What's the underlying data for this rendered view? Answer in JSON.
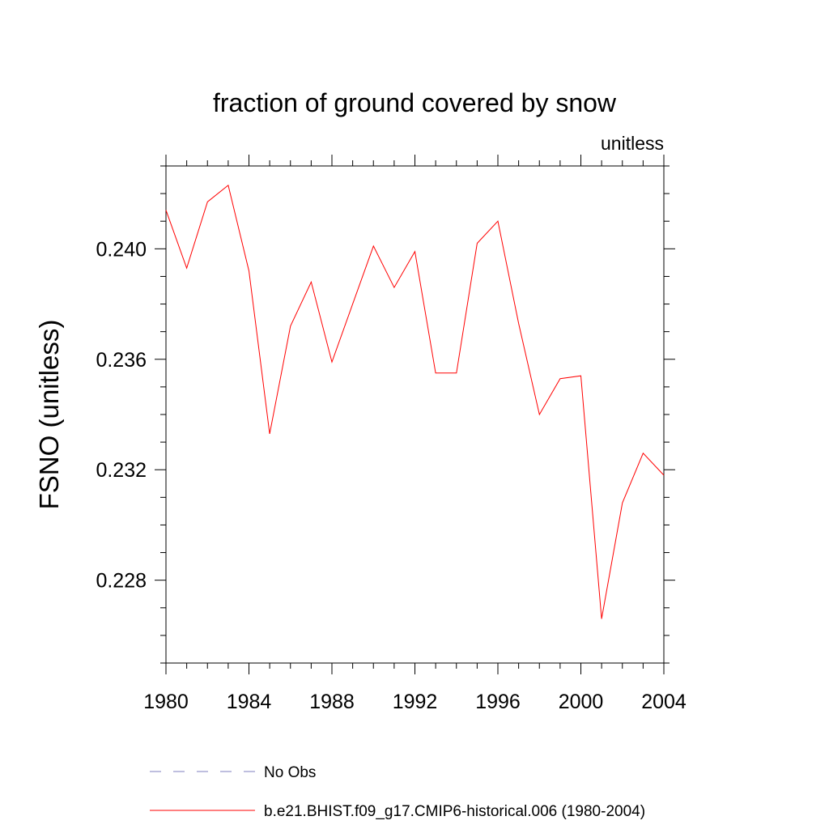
{
  "chart_data": {
    "type": "line",
    "title": "fraction of ground covered by snow",
    "units_label": "unitless",
    "ylabel": "FSNO  (unitless)",
    "xlabel": "",
    "xlim": [
      1980,
      2004
    ],
    "ylim": [
      0.225,
      0.243
    ],
    "x_ticks": [
      1980,
      1984,
      1988,
      1992,
      1996,
      2000,
      2004
    ],
    "x_tick_labels": [
      "1980",
      "1984",
      "1988",
      "1992",
      "1996",
      "2000",
      "2004"
    ],
    "y_ticks": [
      0.228,
      0.232,
      0.236,
      0.24
    ],
    "y_tick_labels": [
      "0.228",
      "0.232",
      "0.236",
      "0.240"
    ],
    "grid": false,
    "legend_position": "bottom",
    "legend": [
      {
        "label": "No Obs",
        "color": "#7f7fbf",
        "style": "dashed"
      },
      {
        "label": "b.e21.BHIST.f09_g17.CMIP6-historical.006 (1980-2004)",
        "color": "#ff0000",
        "style": "solid"
      }
    ],
    "series": [
      {
        "name": "b.e21.BHIST.f09_g17.CMIP6-historical.006 (1980-2004)",
        "color": "#ff0000",
        "x": [
          1980,
          1981,
          1982,
          1983,
          1984,
          1985,
          1986,
          1987,
          1988,
          1989,
          1990,
          1991,
          1992,
          1993,
          1994,
          1995,
          1996,
          1997,
          1998,
          1999,
          2000,
          2001,
          2002,
          2003,
          2004
        ],
        "values": [
          0.2414,
          0.2393,
          0.2417,
          0.2423,
          0.2392,
          0.2333,
          0.2372,
          0.2388,
          0.2359,
          0.238,
          0.2401,
          0.2386,
          0.2399,
          0.2355,
          0.2355,
          0.2402,
          0.241,
          0.2373,
          0.234,
          0.2353,
          0.2354,
          0.2266,
          0.2308,
          0.2326,
          0.2318
        ]
      }
    ]
  }
}
